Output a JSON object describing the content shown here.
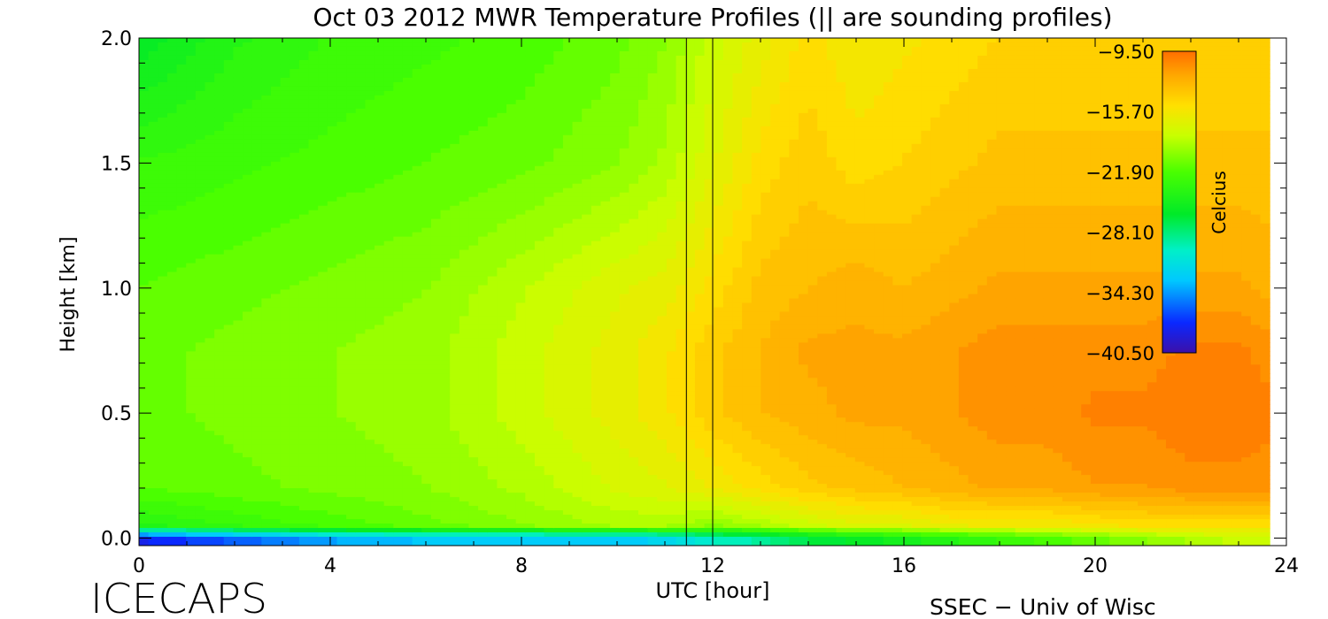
{
  "chart_data": {
    "type": "heatmap",
    "title": "Oct 03 2012 MWR Temperature Profiles (|| are sounding profiles)",
    "xlabel": "UTC [hour]",
    "ylabel": "Height [km]",
    "xlim": [
      0,
      24
    ],
    "ylim": [
      -0.03,
      2.0
    ],
    "x_ticks": [
      0,
      4,
      8,
      12,
      16,
      20,
      24
    ],
    "x_tick_labels": [
      "0",
      "4",
      "8",
      "12",
      "16",
      "20",
      "24"
    ],
    "y_ticks": [
      0.0,
      0.5,
      1.0,
      1.5,
      2.0
    ],
    "y_tick_labels": [
      "0.0",
      "0.5",
      "1.0",
      "1.5",
      "2.0"
    ],
    "data_x_max": 23.65,
    "sounding_profiles_utc": [
      11.45,
      12.0
    ],
    "colorbar": {
      "label": "Celcius",
      "min": -40.5,
      "max": -9.5,
      "ticks": [
        -9.5,
        -15.7,
        -21.9,
        -28.1,
        -34.3,
        -40.5
      ],
      "tick_labels": [
        "−9.50",
        "−15.70",
        "−21.90",
        "−28.10",
        "−34.30",
        "−40.50"
      ]
    },
    "hours": [
      0,
      2,
      4,
      6,
      8,
      10,
      11,
      12,
      13,
      14,
      15,
      16,
      17,
      18,
      19,
      20,
      21,
      22,
      23,
      23.65
    ],
    "heights_km": [
      0.0,
      0.05,
      0.2,
      0.5,
      0.75,
      1.0,
      1.5,
      2.0
    ],
    "temperature_c": [
      [
        -38,
        -36,
        -34,
        -33,
        -33,
        -33,
        -32,
        -30,
        -29,
        -27,
        -26,
        -25,
        -24,
        -23,
        -22,
        -21,
        -20,
        -19,
        -18,
        -18
      ],
      [
        -24,
        -23,
        -22,
        -21,
        -20,
        -19,
        -19,
        -20,
        -19,
        -18,
        -17,
        -17,
        -16,
        -16,
        -16,
        -15.5,
        -15,
        -15,
        -15,
        -15
      ],
      [
        -21.5,
        -21,
        -20.5,
        -20,
        -19,
        -17.5,
        -17,
        -16,
        -15,
        -14,
        -13.5,
        -13,
        -12.5,
        -12,
        -12,
        -11.5,
        -11.5,
        -11,
        -11,
        -11
      ],
      [
        -21,
        -20.5,
        -20,
        -19.5,
        -18,
        -16.5,
        -15.5,
        -14,
        -13,
        -12.5,
        -12,
        -12,
        -11.5,
        -11,
        -11,
        -10.5,
        -10.5,
        -10,
        -10,
        -10.5
      ],
      [
        -21,
        -20.5,
        -20,
        -19.5,
        -18,
        -16.5,
        -15.5,
        -14,
        -13,
        -12,
        -12,
        -12,
        -11.5,
        -11,
        -11,
        -11,
        -11,
        -10.5,
        -10.5,
        -11
      ],
      [
        -21.5,
        -21,
        -20.5,
        -20,
        -18.5,
        -17,
        -16.5,
        -15,
        -13.5,
        -13,
        -12.5,
        -13,
        -12.5,
        -12,
        -12,
        -12,
        -12,
        -12,
        -12,
        -12.5
      ],
      [
        -23,
        -22.5,
        -22,
        -21.5,
        -21,
        -20,
        -19,
        -17,
        -15,
        -14,
        -15,
        -14.5,
        -14,
        -13.5,
        -13.5,
        -13.5,
        -13.5,
        -13.5,
        -13.5,
        -13.5
      ],
      [
        -26,
        -24,
        -23,
        -22.5,
        -22,
        -21,
        -20,
        -18,
        -16.5,
        -15,
        -16,
        -15.5,
        -15,
        -14.5,
        -14.5,
        -14.5,
        -14.5,
        -14.5,
        -14.5,
        -14.5
      ]
    ]
  },
  "footer": {
    "left_text": "ICECAPS",
    "right_text": "SSEC − Univ of Wisc"
  }
}
